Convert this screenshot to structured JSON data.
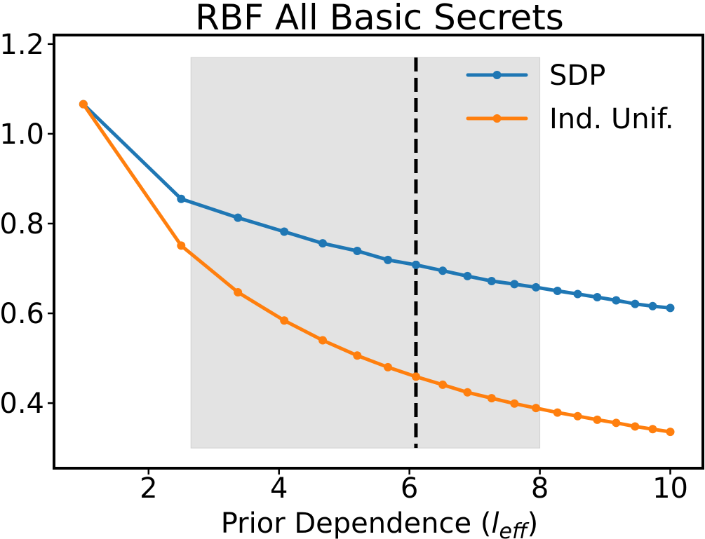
{
  "chart_data": {
    "type": "line",
    "title": "RBF All Basic Secrets",
    "xlabel": {
      "prefix": "Prior Dependence (",
      "symbol": "l",
      "subscript": "eff",
      "suffix": ")"
    },
    "ylabel": "",
    "xlim": [
      0.55,
      10.5
    ],
    "ylim": [
      0.255,
      1.22
    ],
    "xticks": [
      2,
      4,
      6,
      8,
      10
    ],
    "yticks": [
      0.4,
      0.6,
      0.8,
      1.0,
      1.2
    ],
    "xtick_labels": [
      "2",
      "4",
      "6",
      "8",
      "10"
    ],
    "ytick_labels": [
      "0.4",
      "0.6",
      "0.8",
      "1.0",
      "1.2"
    ],
    "grid": false,
    "legend_position": "top-right",
    "shaded_region": {
      "x": [
        2.65,
        8.0
      ],
      "y": [
        0.3,
        1.17
      ],
      "color": "#e3e3e3"
    },
    "vertical_line": {
      "x": 6.1,
      "style": "dashed",
      "color": "#000000"
    },
    "series": [
      {
        "name": "SDP",
        "color": "#1f77b4",
        "x": [
          1.0,
          2.5,
          3.37,
          4.08,
          4.67,
          5.2,
          5.67,
          6.1,
          6.51,
          6.89,
          7.26,
          7.61,
          7.94,
          8.27,
          8.58,
          8.88,
          9.17,
          9.46,
          9.73,
          10.0
        ],
        "values": [
          1.066,
          0.855,
          0.813,
          0.782,
          0.756,
          0.739,
          0.719,
          0.708,
          0.695,
          0.683,
          0.672,
          0.665,
          0.658,
          0.65,
          0.643,
          0.636,
          0.629,
          0.621,
          0.616,
          0.612
        ]
      },
      {
        "name": "Ind. Unif.",
        "color": "#ff7f0e",
        "x": [
          1.0,
          2.5,
          3.37,
          4.08,
          4.67,
          5.2,
          5.67,
          6.1,
          6.51,
          6.89,
          7.26,
          7.61,
          7.94,
          8.27,
          8.58,
          8.88,
          9.17,
          9.46,
          9.73,
          10.0
        ],
        "values": [
          1.066,
          0.751,
          0.647,
          0.584,
          0.54,
          0.506,
          0.48,
          0.459,
          0.441,
          0.424,
          0.411,
          0.399,
          0.389,
          0.379,
          0.371,
          0.363,
          0.356,
          0.348,
          0.342,
          0.336
        ]
      }
    ]
  }
}
